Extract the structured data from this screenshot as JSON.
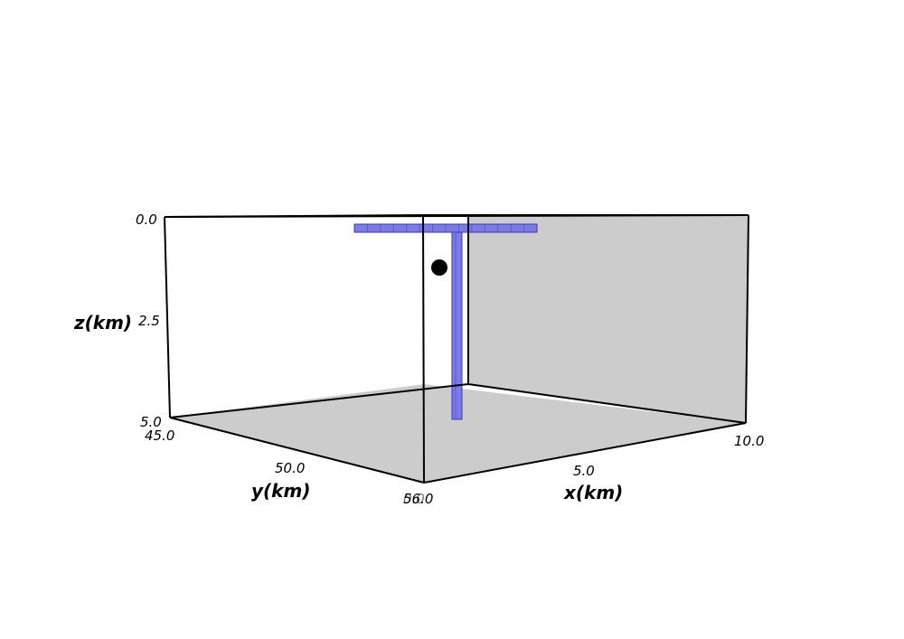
{
  "chart_data": {
    "type": "3d-box",
    "axes": {
      "x": {
        "label": "x(km)",
        "ticks": [
          "5.0",
          "10.0"
        ],
        "range": [
          0,
          10
        ]
      },
      "y": {
        "label": "y(km)",
        "ticks": [
          "45.0",
          "50.0",
          "56.0"
        ],
        "range": [
          45,
          56
        ]
      },
      "z": {
        "label": "z(km)",
        "ticks": [
          "0.0",
          "2.5",
          "5.0"
        ],
        "range": [
          0,
          5
        ]
      }
    },
    "overlapping_tick": "0.0",
    "panes": {
      "floor_color": "#cccccc",
      "back_wall_color": "#cccccc"
    },
    "objects": [
      {
        "name": "horizontal-fault-slab",
        "kind": "prism",
        "color": "#7b7be8",
        "z_top": 0.2,
        "z_bottom": 0.4
      },
      {
        "name": "vertical-fault-column",
        "kind": "prism",
        "color": "#7b7be8",
        "z_top": 0.4,
        "z_bottom": 5.0
      },
      {
        "name": "event-marker",
        "kind": "point",
        "color": "#000000",
        "z": 1.2
      }
    ]
  }
}
